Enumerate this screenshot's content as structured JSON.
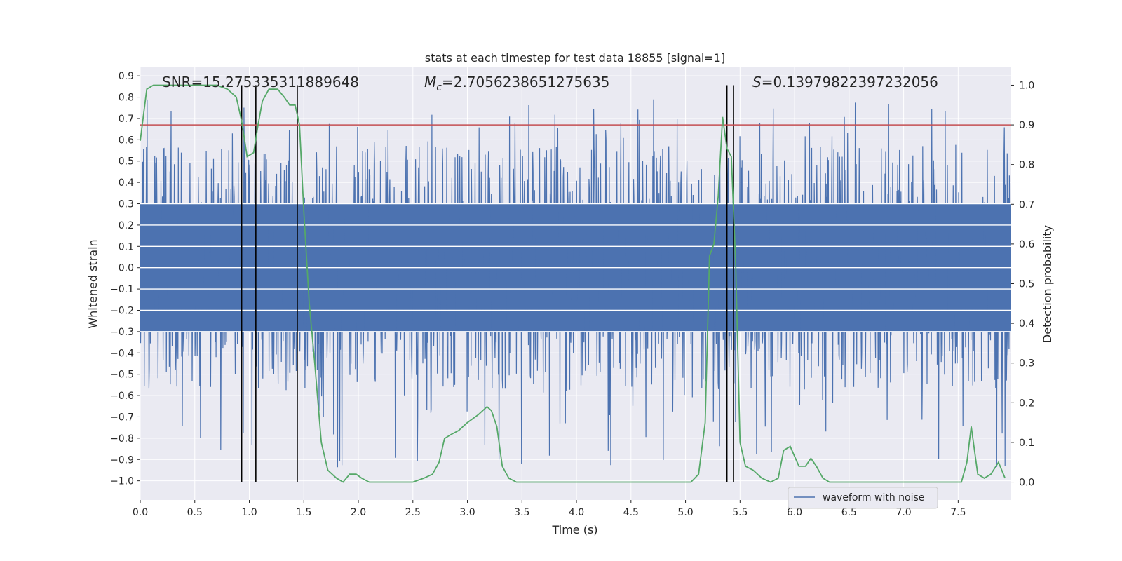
{
  "chart_data": {
    "type": "line",
    "title": "stats at each timestep for test data 18855 [signal=1]",
    "xlabel": "Time (s)",
    "ylabel": "Whitened strain",
    "y2label": "Detection probability",
    "xlim": [
      0.0,
      7.98
    ],
    "ylim": [
      -1.09,
      0.94
    ],
    "y2lim": [
      -0.045,
      1.045
    ],
    "xticks": [
      0.0,
      0.5,
      1.0,
      1.5,
      2.0,
      2.5,
      3.0,
      3.5,
      4.0,
      4.5,
      5.0,
      5.5,
      6.0,
      6.5,
      7.0,
      7.5
    ],
    "xtick_labels": [
      "0.0",
      "0.5",
      "1.0",
      "1.5",
      "2.0",
      "2.5",
      "3.0",
      "3.5",
      "4.0",
      "4.5",
      "5.0",
      "5.5",
      "6.0",
      "6.5",
      "7.0",
      "7.5"
    ],
    "yticks": [
      0.9,
      0.8,
      0.7,
      0.6,
      0.5,
      0.4,
      0.3,
      0.2,
      0.1,
      0.0,
      -0.1,
      -0.2,
      -0.3,
      -0.4,
      -0.5,
      -0.6,
      -0.7,
      -0.8,
      -0.9,
      -1.0
    ],
    "ytick_labels": [
      "0.9",
      "0.8",
      "0.7",
      "0.6",
      "0.5",
      "0.4",
      "0.3",
      "0.2",
      "0.1",
      "0.0",
      "−0.1",
      "−0.2",
      "−0.3",
      "−0.4",
      "−0.5",
      "−0.6",
      "−0.7",
      "−0.8",
      "−0.9",
      "−1.0"
    ],
    "y2ticks": [
      1.0,
      0.9,
      0.8,
      0.7,
      0.6,
      0.5,
      0.4,
      0.3,
      0.2,
      0.1,
      0.0
    ],
    "y2tick_labels": [
      "1.0",
      "0.9",
      "0.8",
      "0.7",
      "0.6",
      "0.5",
      "0.4",
      "0.3",
      "0.2",
      "0.1",
      "0.0"
    ],
    "grid": true,
    "legend_placement": "lower-right",
    "annotations": {
      "snr": "SNR=15.275335311889648",
      "mc_symbol": "M",
      "mc_subscript": "c",
      "mc_value": "=2.7056238651275635",
      "s_symbol": "S",
      "s_value": "=0.13979822397232056"
    },
    "series": [
      {
        "name": "waveform with noise",
        "color": "#4c72b0",
        "axis": "left",
        "description_rendering": "dense noise band",
        "core_range": [
          -0.3,
          0.3
        ],
        "spike_max": 0.84,
        "spike_min": -1.0
      },
      {
        "color": "#55a868",
        "axis": "right",
        "x": [
          0.0,
          0.06,
          0.12,
          0.2,
          0.3,
          0.4,
          0.5,
          0.6,
          0.7,
          0.8,
          0.88,
          0.93,
          0.98,
          1.04,
          1.08,
          1.12,
          1.18,
          1.26,
          1.32,
          1.37,
          1.42,
          1.46,
          1.5,
          1.55,
          1.6,
          1.66,
          1.72,
          1.8,
          1.86,
          1.92,
          1.98,
          2.03,
          2.1,
          2.2,
          2.3,
          2.4,
          2.5,
          2.6,
          2.68,
          2.74,
          2.79,
          2.85,
          2.92,
          3.0,
          3.1,
          3.18,
          3.22,
          3.27,
          3.32,
          3.38,
          3.45,
          3.55,
          3.65,
          3.75,
          3.85,
          3.95,
          4.05,
          4.15,
          4.25,
          4.35,
          4.45,
          4.55,
          4.65,
          4.75,
          4.85,
          4.95,
          5.05,
          5.12,
          5.18,
          5.22,
          5.26,
          5.3,
          5.34,
          5.38,
          5.42,
          5.46,
          5.5,
          5.55,
          5.62,
          5.7,
          5.78,
          5.85,
          5.9,
          5.96,
          6.04,
          6.1,
          6.15,
          6.2,
          6.26,
          6.32,
          6.38,
          6.45,
          6.55,
          6.65,
          6.75,
          6.85,
          6.95,
          7.05,
          7.15,
          7.25,
          7.35,
          7.45,
          7.53,
          7.58,
          7.62,
          7.68,
          7.74,
          7.8,
          7.87,
          7.93
        ],
        "y": [
          0.86,
          0.99,
          1.0,
          1.0,
          1.0,
          1.0,
          1.0,
          1.0,
          1.0,
          0.99,
          0.97,
          0.91,
          0.82,
          0.83,
          0.9,
          0.96,
          0.99,
          0.99,
          0.97,
          0.95,
          0.95,
          0.9,
          0.68,
          0.45,
          0.3,
          0.1,
          0.03,
          0.01,
          0.0,
          0.02,
          0.02,
          0.01,
          0.0,
          0.0,
          0.0,
          0.0,
          0.0,
          0.01,
          0.02,
          0.05,
          0.11,
          0.12,
          0.13,
          0.15,
          0.17,
          0.19,
          0.18,
          0.14,
          0.04,
          0.01,
          0.0,
          0.0,
          0.0,
          0.0,
          0.0,
          0.0,
          0.0,
          0.0,
          0.0,
          0.0,
          0.0,
          0.0,
          0.0,
          0.0,
          0.0,
          0.0,
          0.0,
          0.02,
          0.15,
          0.57,
          0.6,
          0.72,
          0.92,
          0.84,
          0.82,
          0.55,
          0.1,
          0.04,
          0.03,
          0.01,
          0.0,
          0.01,
          0.08,
          0.09,
          0.04,
          0.04,
          0.06,
          0.04,
          0.01,
          0.0,
          0.0,
          0.0,
          0.0,
          0.0,
          0.0,
          0.0,
          0.0,
          0.0,
          0.0,
          0.0,
          0.0,
          0.0,
          0.0,
          0.05,
          0.14,
          0.02,
          0.01,
          0.02,
          0.05,
          0.01
        ]
      }
    ],
    "threshold_line": {
      "value": 0.9,
      "axis": "right",
      "color": "#c44e52"
    },
    "vertical_lines": {
      "x": [
        0.93,
        1.06,
        1.44,
        5.38,
        5.44
      ],
      "color": "#000000"
    }
  }
}
